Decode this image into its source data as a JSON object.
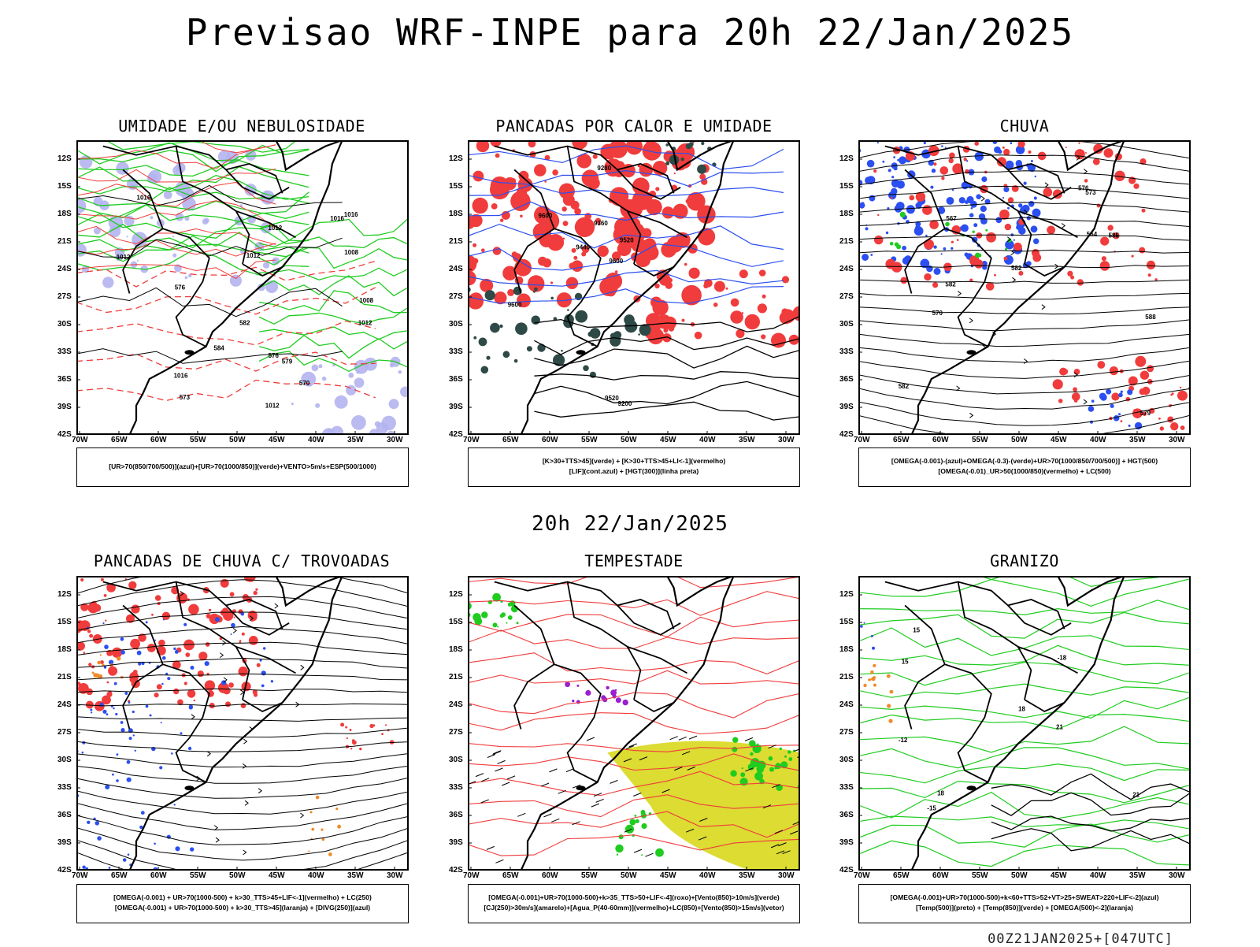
{
  "header": {
    "title": "Previsao WRF-INPE  para 20h 22/Jan/2025"
  },
  "mid_date": "20h 22/Jan/2025",
  "footer_run": "00Z21JAN2025+[047UTC]",
  "axes": {
    "lat_ticks": [
      "12S",
      "15S",
      "18S",
      "21S",
      "24S",
      "27S",
      "30S",
      "33S",
      "36S",
      "39S",
      "42S"
    ],
    "lon_ticks": [
      "70W",
      "65W",
      "60W",
      "55W",
      "50W",
      "45W",
      "40W",
      "35W",
      "30W"
    ]
  },
  "colors": {
    "blue": "#2b4ff0",
    "green": "#1fcc1f",
    "red": "#f03c3c",
    "lavender": "#b4b4f0",
    "dark_teal": "#2e4a46",
    "yellow": "#dcdc32",
    "orange": "#f08a28",
    "purple": "#9a1fd0"
  },
  "panels": [
    {
      "id": "umidade",
      "title": "UMIDADE E/OU NEBULOSIDADE",
      "legend": [
        "[UR>70(850/700/500)](azul)+[UR>70(1000/850)](verde)+VENTO>5m/s+ESP(500/1000)"
      ],
      "contour_labels": [
        "1012",
        "1012",
        "1012",
        "1016",
        "1016",
        "1008",
        "1012",
        "1008",
        "1016",
        "1016",
        "1012",
        "576",
        "576",
        "579",
        "582",
        "584",
        "570",
        "573"
      ]
    },
    {
      "id": "pancadas_calor",
      "title": "PANCADAS POR CALOR E UMIDADE",
      "legend": [
        "[K>30+TTS>45](verde) + [K>30+TTS>45+LI<-1](vermelho)",
        "[LIF](cont.azul) + [HGT(300)](linha preta)"
      ],
      "contour_labels": [
        "9600",
        "9600",
        "9520",
        "9440",
        "9360",
        "9280",
        "9200",
        "9520",
        "9600"
      ]
    },
    {
      "id": "chuva",
      "title": "CHUVA",
      "legend": [
        "[OMEGA(-0.001)-(azul)+OMEGA(-0.3)-(verde)+UR>70(1000/850/700/500)] + HGT(500)",
        "[OMEGA(-0.01)_UR>50(1000/850)(vermelho) + LC(500)"
      ],
      "contour_labels": [
        "582",
        "579",
        "576",
        "573",
        "570",
        "567",
        "564",
        "588",
        "585",
        "582",
        "582"
      ]
    },
    {
      "id": "pancadas_trovoadas",
      "title": "PANCADAS DE CHUVA C/ TROVOADAS",
      "legend": [
        "[OMEGA(-0.001) + UR>70(1000-500) + k>30_TTS>45+LIF<-1](vermelho) + LC(250)",
        "[OMEGA(-0.001) + UR>70(1000-500) + k>30_TTS>45](laranja) + [DIVG(250)](azul)"
      ],
      "contour_labels": []
    },
    {
      "id": "tempestade",
      "title": "TEMPESTADE",
      "legend": [
        "[OMEGA(-0.001)+UR>70(1000-500)+k>35_TTS>50+LIF<-4](roxo)+[Vento(850)>10m/s](verde)",
        "[CJ(250)>30m/s](amarelo)+[Agua_P(40-60mm)](vermelho)+LC(850)+[Vento(850)>15m/s](vetor)"
      ],
      "contour_labels": []
    },
    {
      "id": "granizo",
      "title": "GRANIZO",
      "legend": [
        "[OMEGA(-0.001)+UR>70(1000-500)+k<60+TTS>52+VT>25+SWEAT>220+LIF<-2](azul)",
        "[Temp(500)](preto) + [Temp(850)](verde) + [OMEGA(500)<-2](laranja)"
      ],
      "contour_labels": [
        "-12",
        "-15",
        "-18",
        "15",
        "18",
        "21",
        "15",
        "18",
        "21"
      ]
    }
  ]
}
